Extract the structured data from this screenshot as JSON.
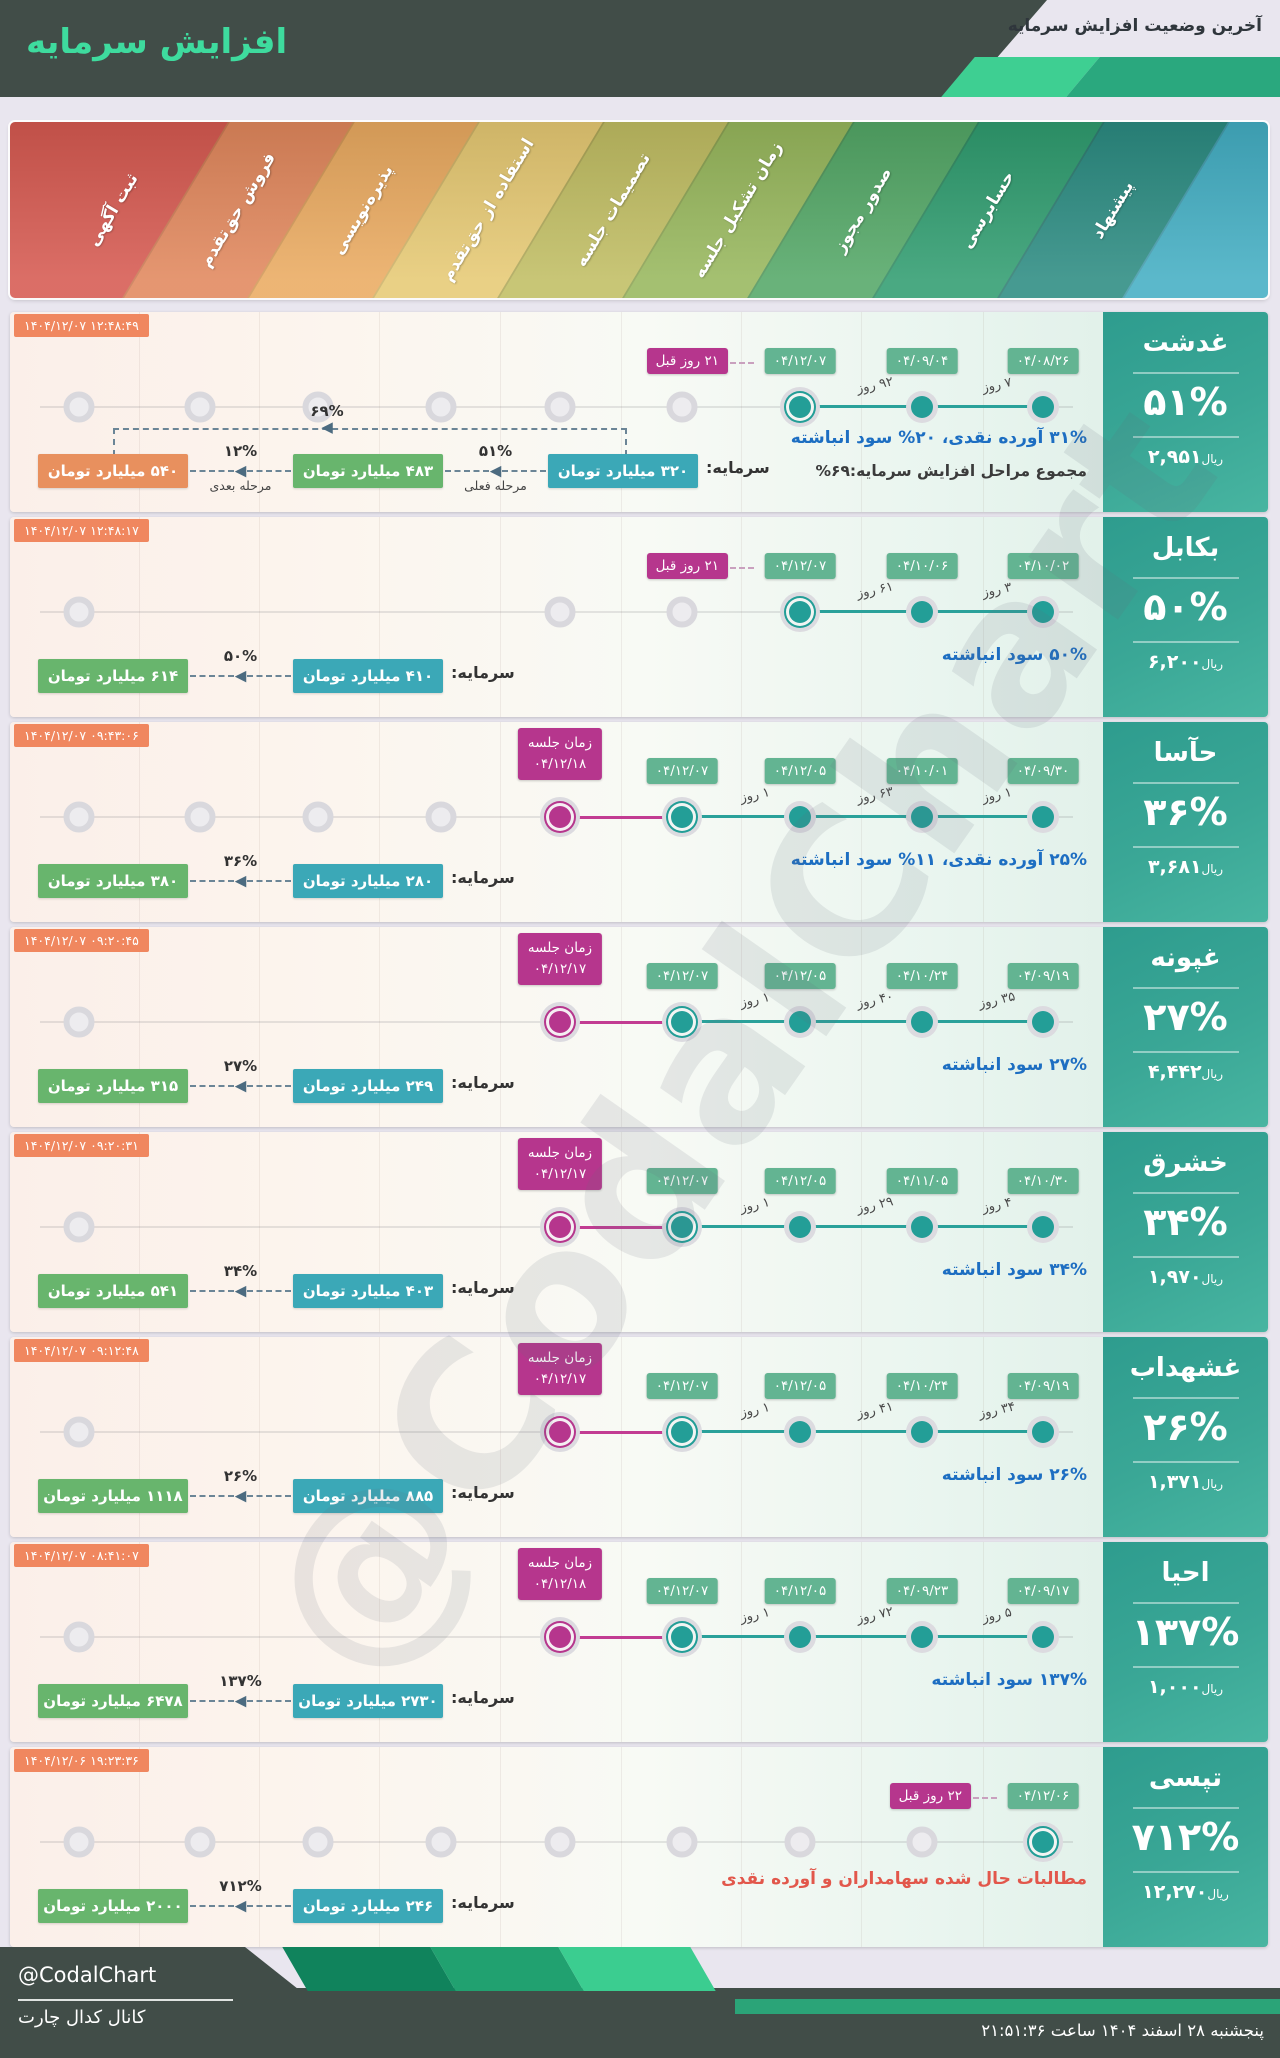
{
  "header": {
    "title": "افزایش سرمایه",
    "subtitle": "آخرین وضعیت افزایش سرمایه"
  },
  "stages": [
    {
      "label": "پیشنهاد",
      "color": "#2B8B81"
    },
    {
      "label": "حسابرسی",
      "color": "#2F9C6F"
    },
    {
      "label": "صدور مجوز",
      "color": "#53A766"
    },
    {
      "label": "زمان تشکیل جلسه",
      "color": "#97B75C"
    },
    {
      "label": "تصمیمات جلسه",
      "color": "#C0BD62"
    },
    {
      "label": "استفاده از حق‌تقدم",
      "color": "#E6C973"
    },
    {
      "label": "پذیره‌نویسی",
      "color": "#EAAA60"
    },
    {
      "label": "فروش حق‌تقدم",
      "color": "#E1875C"
    },
    {
      "label": "ثبت آگهی",
      "color": "#D65950"
    }
  ],
  "legend_tail_color": "#43AEC3",
  "colors": {
    "done_dot": "#239E97",
    "meeting": "#B6368D",
    "date_badge": "#63B492",
    "timestamp_badge": "#F0875F",
    "capital_base": "#3BA8B7",
    "capital_current": "#68B56D",
    "capital_next": "#E8905E",
    "text_blue": "#1D6EC2",
    "text_red": "#E2574B"
  },
  "rows": [
    {
      "symbol": "غدشت",
      "percent": "۵۱%",
      "price": "۲,۹۵۱",
      "price_unit": "ریال",
      "timestamp": "۱۴۰۴/۱۲/۰۷ ۱۲:۴۸:۴۹",
      "milestones": [
        {
          "stage": 0,
          "type": "done",
          "date": "۰۴/۰۸/۲۶"
        },
        {
          "stage": 1,
          "type": "done",
          "date": "۰۴/۰۹/۰۴"
        },
        {
          "stage": 2,
          "type": "current",
          "date": "۰۴/۱۲/۰۷",
          "note": "۲۱ روز قبل"
        }
      ],
      "gaps": [
        {
          "between": [
            0,
            1
          ],
          "label": "۷ روز"
        },
        {
          "between": [
            1,
            2
          ],
          "label": "۹۲ روز"
        }
      ],
      "pending_stages": [
        3,
        4,
        5,
        6,
        7,
        8
      ],
      "composition": "۳۱% آورده نقدی، ۲۰% سود انباشته",
      "composition_color": "blue",
      "summary": "مجموع مراحل افزایش سرمایه:۶۹%",
      "capital": {
        "label": "سرمایه:",
        "base": "۳۲۰ میلیارد تومان",
        "steps": [
          {
            "pct": "۵۱%",
            "note": "مرحله فعلی",
            "value": "۴۸۳ میلیارد تومان",
            "color": "green"
          },
          {
            "pct": "۱۲%",
            "note": "مرحله بعدی",
            "value": "۵۴۰ میلیارد تومان",
            "color": "orange"
          }
        ],
        "total_pct": "۶۹%"
      }
    },
    {
      "symbol": "بکابل",
      "percent": "۵۰%",
      "price": "۶,۲۰۰",
      "price_unit": "ریال",
      "timestamp": "۱۴۰۴/۱۲/۰۷ ۱۲:۴۸:۱۷",
      "milestones": [
        {
          "stage": 0,
          "type": "done",
          "date": "۰۴/۱۰/۰۲"
        },
        {
          "stage": 1,
          "type": "done",
          "date": "۰۴/۱۰/۰۶"
        },
        {
          "stage": 2,
          "type": "current",
          "date": "۰۴/۱۲/۰۷",
          "note": "۲۱ روز قبل"
        }
      ],
      "gaps": [
        {
          "between": [
            0,
            1
          ],
          "label": "۳ روز"
        },
        {
          "between": [
            1,
            2
          ],
          "label": "۶۱ روز"
        }
      ],
      "pending_stages": [
        3,
        4,
        8
      ],
      "composition": "۵۰% سود انباشته",
      "composition_color": "blue",
      "capital": {
        "label": "سرمایه:",
        "base": "۴۱۰ میلیارد تومان",
        "steps": [
          {
            "pct": "۵۰%",
            "value": "۶۱۴ میلیارد تومان",
            "color": "green"
          }
        ]
      }
    },
    {
      "symbol": "حآسا",
      "percent": "۳۶%",
      "price": "۳,۶۸۱",
      "price_unit": "ریال",
      "timestamp": "۱۴۰۴/۱۲/۰۷ ۰۹:۴۳:۰۶",
      "milestones": [
        {
          "stage": 0,
          "type": "done",
          "date": "۰۴/۰۹/۳۰"
        },
        {
          "stage": 1,
          "type": "done",
          "date": "۰۴/۱۰/۰۱"
        },
        {
          "stage": 2,
          "type": "done",
          "date": "۰۴/۱۲/۰۵"
        },
        {
          "stage": 3,
          "type": "current",
          "date": "۰۴/۱۲/۰۷"
        },
        {
          "stage": 4,
          "type": "meeting",
          "label": "زمان جلسه",
          "date": "۰۴/۱۲/۱۸"
        }
      ],
      "gaps": [
        {
          "between": [
            0,
            1
          ],
          "label": "۱ روز"
        },
        {
          "between": [
            1,
            2
          ],
          "label": "۶۳ روز"
        },
        {
          "between": [
            2,
            3
          ],
          "label": "۱ روز"
        }
      ],
      "pending_stages": [
        5,
        6,
        7,
        8
      ],
      "composition": "۲۵% آورده نقدی، ۱۱% سود انباشته",
      "composition_color": "blue",
      "capital": {
        "label": "سرمایه:",
        "base": "۲۸۰ میلیارد تومان",
        "steps": [
          {
            "pct": "۳۶%",
            "value": "۳۸۰ میلیارد تومان",
            "color": "green"
          }
        ]
      }
    },
    {
      "symbol": "غپونه",
      "percent": "۲۷%",
      "price": "۴,۴۴۲",
      "price_unit": "ریال",
      "timestamp": "۱۴۰۴/۱۲/۰۷ ۰۹:۲۰:۴۵",
      "milestones": [
        {
          "stage": 0,
          "type": "done",
          "date": "۰۴/۰۹/۱۹"
        },
        {
          "stage": 1,
          "type": "done",
          "date": "۰۴/۱۰/۲۴"
        },
        {
          "stage": 2,
          "type": "done",
          "date": "۰۴/۱۲/۰۵"
        },
        {
          "stage": 3,
          "type": "current",
          "date": "۰۴/۱۲/۰۷"
        },
        {
          "stage": 4,
          "type": "meeting",
          "label": "زمان جلسه",
          "date": "۰۴/۱۲/۱۷"
        }
      ],
      "gaps": [
        {
          "between": [
            0,
            1
          ],
          "label": "۳۵ روز"
        },
        {
          "between": [
            1,
            2
          ],
          "label": "۴۰ روز"
        },
        {
          "between": [
            2,
            3
          ],
          "label": "۱ روز"
        }
      ],
      "pending_stages": [
        8
      ],
      "composition": "۲۷% سود انباشته",
      "composition_color": "blue",
      "capital": {
        "label": "سرمایه:",
        "base": "۲۴۹ میلیارد تومان",
        "steps": [
          {
            "pct": "۲۷%",
            "value": "۳۱۵ میلیارد تومان",
            "color": "green"
          }
        ]
      }
    },
    {
      "symbol": "خشرق",
      "percent": "۳۴%",
      "price": "۱,۹۷۰",
      "price_unit": "ریال",
      "timestamp": "۱۴۰۴/۱۲/۰۷ ۰۹:۲۰:۳۱",
      "milestones": [
        {
          "stage": 0,
          "type": "done",
          "date": "۰۴/۱۰/۳۰"
        },
        {
          "stage": 1,
          "type": "done",
          "date": "۰۴/۱۱/۰۵"
        },
        {
          "stage": 2,
          "type": "done",
          "date": "۰۴/۱۲/۰۵"
        },
        {
          "stage": 3,
          "type": "current",
          "date": "۰۴/۱۲/۰۷"
        },
        {
          "stage": 4,
          "type": "meeting",
          "label": "زمان جلسه",
          "date": "۰۴/۱۲/۱۷"
        }
      ],
      "gaps": [
        {
          "between": [
            0,
            1
          ],
          "label": "۴ روز"
        },
        {
          "between": [
            1,
            2
          ],
          "label": "۲۹ روز"
        },
        {
          "between": [
            2,
            3
          ],
          "label": "۱ روز"
        }
      ],
      "pending_stages": [
        8
      ],
      "composition": "۳۴% سود انباشته",
      "composition_color": "blue",
      "capital": {
        "label": "سرمایه:",
        "base": "۴۰۳ میلیارد تومان",
        "steps": [
          {
            "pct": "۳۴%",
            "value": "۵۴۱ میلیارد تومان",
            "color": "green"
          }
        ]
      }
    },
    {
      "symbol": "غشهداب",
      "percent": "۲۶%",
      "price": "۱,۳۷۱",
      "price_unit": "ریال",
      "timestamp": "۱۴۰۴/۱۲/۰۷ ۰۹:۱۲:۴۸",
      "milestones": [
        {
          "stage": 0,
          "type": "done",
          "date": "۰۴/۰۹/۱۹"
        },
        {
          "stage": 1,
          "type": "done",
          "date": "۰۴/۱۰/۲۴"
        },
        {
          "stage": 2,
          "type": "done",
          "date": "۰۴/۱۲/۰۵"
        },
        {
          "stage": 3,
          "type": "current",
          "date": "۰۴/۱۲/۰۷"
        },
        {
          "stage": 4,
          "type": "meeting",
          "label": "زمان جلسه",
          "date": "۰۴/۱۲/۱۷"
        }
      ],
      "gaps": [
        {
          "between": [
            0,
            1
          ],
          "label": "۳۴ روز"
        },
        {
          "between": [
            1,
            2
          ],
          "label": "۴۱ روز"
        },
        {
          "between": [
            2,
            3
          ],
          "label": "۱ روز"
        }
      ],
      "pending_stages": [
        8
      ],
      "composition": "۲۶% سود انباشته",
      "composition_color": "blue",
      "capital": {
        "label": "سرمایه:",
        "base": "۸۸۵ میلیارد تومان",
        "steps": [
          {
            "pct": "۲۶%",
            "value": "۱۱۱۸ میلیارد تومان",
            "color": "green"
          }
        ]
      }
    },
    {
      "symbol": "احیا",
      "percent": "۱۳۷%",
      "price": "۱,۰۰۰",
      "price_unit": "ریال",
      "timestamp": "۱۴۰۴/۱۲/۰۷ ۰۸:۴۱:۰۷",
      "milestones": [
        {
          "stage": 0,
          "type": "done",
          "date": "۰۴/۰۹/۱۷"
        },
        {
          "stage": 1,
          "type": "done",
          "date": "۰۴/۰۹/۲۳"
        },
        {
          "stage": 2,
          "type": "done",
          "date": "۰۴/۱۲/۰۵"
        },
        {
          "stage": 3,
          "type": "current",
          "date": "۰۴/۱۲/۰۷"
        },
        {
          "stage": 4,
          "type": "meeting",
          "label": "زمان جلسه",
          "date": "۰۴/۱۲/۱۸"
        }
      ],
      "gaps": [
        {
          "between": [
            0,
            1
          ],
          "label": "۵ روز"
        },
        {
          "between": [
            1,
            2
          ],
          "label": "۷۲ روز"
        },
        {
          "between": [
            2,
            3
          ],
          "label": "۱ روز"
        }
      ],
      "pending_stages": [
        8
      ],
      "composition": "۱۳۷% سود انباشته",
      "composition_color": "blue",
      "capital": {
        "label": "سرمایه:",
        "base": "۲۷۳۰ میلیارد تومان",
        "steps": [
          {
            "pct": "۱۳۷%",
            "value": "۶۴۷۸ میلیارد تومان",
            "color": "green"
          }
        ]
      }
    },
    {
      "symbol": "تپسی",
      "percent": "۷۱۲%",
      "price": "۱۲,۲۷۰",
      "price_unit": "ریال",
      "timestamp": "۱۴۰۴/۱۲/۰۶ ۱۹:۲۳:۳۶",
      "milestones": [
        {
          "stage": 0,
          "type": "current",
          "date": "۰۴/۱۲/۰۶",
          "note": "۲۲ روز قبل"
        }
      ],
      "gaps": [],
      "pending_stages": [
        1,
        2,
        3,
        4,
        5,
        6,
        7,
        8
      ],
      "composition": "مطالبات حال شده سهامداران و آورده نقدی",
      "composition_color": "red",
      "capital": {
        "label": "سرمایه:",
        "base": "۲۴۶ میلیارد تومان",
        "steps": [
          {
            "pct": "۷۱۲%",
            "value": "۲۰۰۰ میلیارد تومان",
            "color": "green"
          }
        ]
      }
    }
  ],
  "watermark": "@CodalChart",
  "footer": {
    "handle": "@CodalChart",
    "channel": "کانال کدال چارت",
    "datetime": "پنجشنبه ۲۸ اسفند ۱۴۰۴ ساعت ۲۱:۵۱:۳۶"
  },
  "chart_data": {
    "type": "table",
    "title": "آخرین وضعیت افزایش سرمایه",
    "stage_legend": [
      "پیشنهاد",
      "حسابرسی",
      "صدور مجوز",
      "زمان تشکیل جلسه",
      "تصمیمات جلسه",
      "استفاده از حق‌تقدم",
      "پذیره‌نویسی",
      "فروش حق‌تقدم",
      "ثبت آگهی"
    ],
    "companies": [
      "غدشت",
      "بکابل",
      "حآسا",
      "غپونه",
      "خشرق",
      "غشهداب",
      "احیا",
      "تپسی"
    ],
    "increase_percent": [
      "۵۱%",
      "۵۰%",
      "۳۶%",
      "۲۷%",
      "۳۴%",
      "۲۶%",
      "۱۳۷%",
      "۷۱۲%"
    ],
    "last_price_rial": [
      "۲,۹۵۱",
      "۶,۲۰۰",
      "۳,۶۸۱",
      "۴,۴۴۲",
      "۱,۹۷۰",
      "۱,۳۷۱",
      "۱,۰۰۰",
      "۱۲,۲۷۰"
    ],
    "current_capital_billion_toman": [
      "۳۲۰",
      "۴۱۰",
      "۲۸۰",
      "۲۴۹",
      "۴۰۳",
      "۸۸۵",
      "۲۷۳۰",
      "۲۴۶"
    ],
    "next_capital_billion_toman": [
      "۴۸۳ / ۵۴۰",
      "۶۱۴",
      "۳۸۰",
      "۳۱۵",
      "۵۴۱",
      "۱۱۱۸",
      "۶۴۷۸",
      "۲۰۰۰"
    ]
  }
}
